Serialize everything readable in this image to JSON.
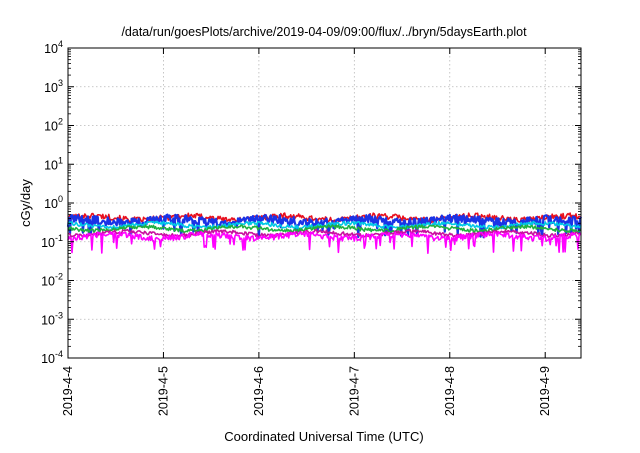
{
  "chart_data": {
    "type": "line",
    "title": "/data/run/goesPlots/archive/2019-04-09/09:00/flux/../bryn/5daysEarth.plot",
    "xlabel": "Coordinated Universal Time (UTC)",
    "ylabel": "cGy/day",
    "yscale": "log",
    "ylim": [
      0.0001,
      10000
    ],
    "yticks": [
      {
        "base": "10",
        "exp": "-4"
      },
      {
        "base": "10",
        "exp": "-3"
      },
      {
        "base": "10",
        "exp": "-2"
      },
      {
        "base": "10",
        "exp": "-1"
      },
      {
        "base": "10",
        "exp": "0"
      },
      {
        "base": "10",
        "exp": "1"
      },
      {
        "base": "10",
        "exp": "2"
      },
      {
        "base": "10",
        "exp": "3"
      },
      {
        "base": "10",
        "exp": "4"
      }
    ],
    "xlim": [
      "2019-04-04 00:00",
      "2019-04-09 09:00"
    ],
    "xticks": [
      "2019-4-4",
      "2019-4-5",
      "2019-4-6",
      "2019-4-7",
      "2019-4-8",
      "2019-4-9"
    ],
    "grid": true,
    "legend": "none",
    "series": [
      {
        "color": "#e8101e",
        "baseline": 0.42,
        "variation": 0.12,
        "dips": false
      },
      {
        "color": "#1a33e6",
        "baseline": 0.36,
        "variation": 0.15,
        "dips": true
      },
      {
        "color": "#00c8e6",
        "baseline": 0.27,
        "variation": 0.05,
        "dips": false
      },
      {
        "color": "#20b040",
        "baseline": 0.22,
        "variation": 0.04,
        "dips": false
      },
      {
        "color": "#c8109e",
        "baseline": 0.165,
        "variation": 0.03,
        "dips": false
      },
      {
        "color": "#ff00ff",
        "baseline": 0.14,
        "variation": 0.04,
        "dips": true
      }
    ]
  }
}
